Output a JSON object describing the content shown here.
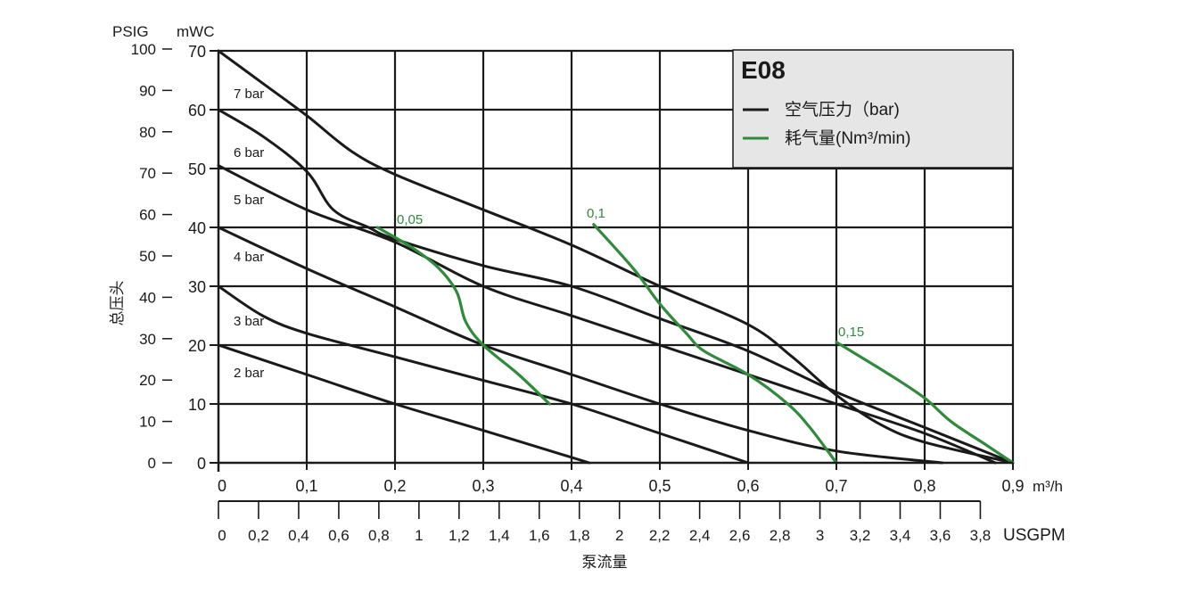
{
  "chart_data": {
    "type": "line",
    "title": "E08",
    "legend": {
      "position": "top-right",
      "items": [
        {
          "label": "空气压力（bar)",
          "color": "#1a1a1a"
        },
        {
          "label": "耗气量(Nm³/min)",
          "color": "#2e8b3a"
        }
      ]
    },
    "grid": true,
    "ylabel": "总压头",
    "xlabel": "泵流量",
    "y_unit_psig": "PSIG",
    "y_unit_mwc": "mWC",
    "x_unit_m3h": "m³/h",
    "x_unit_usgpm": "USGPM",
    "xlim": [
      0,
      0.9
    ],
    "ylim": [
      0,
      70
    ],
    "x_ticks": [
      "0",
      "0,1",
      "0,2",
      "0,3",
      "0,4",
      "0,5",
      "0,6",
      "0,7",
      "0,8",
      "0,9"
    ],
    "y_ticks_mwc": [
      "0",
      "10",
      "20",
      "30",
      "40",
      "50",
      "60",
      "70"
    ],
    "y_ticks_psig": [
      "0",
      "10",
      "20",
      "30",
      "40",
      "50",
      "60",
      "70",
      "80",
      "90",
      "100"
    ],
    "usgpm_ticks": [
      "0",
      "0,2",
      "0,4",
      "0,6",
      "0,8",
      "1",
      "1,2",
      "1,4",
      "1,6",
      "1,8",
      "2",
      "2,2",
      "2,4",
      "2,6",
      "2,8",
      "3",
      "3,2",
      "3,4",
      "3,6",
      "3,8"
    ],
    "series": [
      {
        "name": "7 bar",
        "color": "#1a1a1a",
        "points": [
          [
            0,
            70
          ],
          [
            0.05,
            64.5
          ],
          [
            0.1,
            59
          ],
          [
            0.15,
            53
          ],
          [
            0.2,
            49
          ],
          [
            0.3,
            43
          ],
          [
            0.4,
            37
          ],
          [
            0.5,
            30
          ],
          [
            0.6,
            23.5
          ],
          [
            0.65,
            18
          ],
          [
            0.7,
            11.5
          ],
          [
            0.75,
            6.5
          ],
          [
            0.8,
            3.5
          ],
          [
            0.9,
            0
          ]
        ]
      },
      {
        "name": "6 bar",
        "color": "#1a1a1a",
        "points": [
          [
            0,
            60
          ],
          [
            0.05,
            55.5
          ],
          [
            0.1,
            49.5
          ],
          [
            0.13,
            43
          ],
          [
            0.17,
            40
          ],
          [
            0.2,
            38
          ],
          [
            0.3,
            33.5
          ],
          [
            0.4,
            30
          ],
          [
            0.5,
            24.5
          ],
          [
            0.6,
            19
          ],
          [
            0.7,
            12
          ],
          [
            0.8,
            6
          ],
          [
            0.9,
            0
          ]
        ]
      },
      {
        "name": "5 bar",
        "color": "#1a1a1a",
        "points": [
          [
            0,
            50.5
          ],
          [
            0.1,
            43
          ],
          [
            0.2,
            37.5
          ],
          [
            0.3,
            30
          ],
          [
            0.4,
            25
          ],
          [
            0.5,
            20
          ],
          [
            0.6,
            15
          ],
          [
            0.7,
            10
          ],
          [
            0.8,
            5
          ],
          [
            0.88,
            0
          ]
        ]
      },
      {
        "name": "4 bar",
        "color": "#1a1a1a",
        "points": [
          [
            0,
            40
          ],
          [
            0.1,
            33
          ],
          [
            0.2,
            26.5
          ],
          [
            0.3,
            20
          ],
          [
            0.4,
            15
          ],
          [
            0.5,
            10
          ],
          [
            0.6,
            5.5
          ],
          [
            0.7,
            2
          ],
          [
            0.82,
            0
          ]
        ]
      },
      {
        "name": "3 bar",
        "color": "#1a1a1a",
        "points": [
          [
            0,
            30
          ],
          [
            0.05,
            25
          ],
          [
            0.1,
            22
          ],
          [
            0.2,
            18
          ],
          [
            0.3,
            14
          ],
          [
            0.4,
            10
          ],
          [
            0.5,
            5
          ],
          [
            0.6,
            0
          ]
        ]
      },
      {
        "name": "2 bar",
        "color": "#1a1a1a",
        "points": [
          [
            0,
            20
          ],
          [
            0.1,
            15
          ],
          [
            0.2,
            10
          ],
          [
            0.3,
            5.5
          ],
          [
            0.42,
            0
          ]
        ]
      },
      {
        "name": "0,05",
        "color": "#2e8b3a",
        "points": [
          [
            0.18,
            40
          ],
          [
            0.22,
            36.5
          ],
          [
            0.25,
            33
          ],
          [
            0.27,
            29
          ],
          [
            0.28,
            24
          ],
          [
            0.3,
            20
          ],
          [
            0.34,
            15
          ],
          [
            0.375,
            10
          ]
        ]
      },
      {
        "name": "0,1",
        "color": "#2e8b3a",
        "points": [
          [
            0.425,
            40.5
          ],
          [
            0.47,
            33
          ],
          [
            0.5,
            27
          ],
          [
            0.53,
            22
          ],
          [
            0.55,
            19
          ],
          [
            0.6,
            15
          ],
          [
            0.645,
            10
          ],
          [
            0.67,
            6
          ],
          [
            0.7,
            0
          ]
        ]
      },
      {
        "name": "0,15",
        "color": "#2e8b3a",
        "points": [
          [
            0.7,
            20.5
          ],
          [
            0.76,
            15
          ],
          [
            0.8,
            11
          ],
          [
            0.83,
            7
          ],
          [
            0.87,
            3
          ],
          [
            0.9,
            0
          ]
        ]
      }
    ]
  }
}
